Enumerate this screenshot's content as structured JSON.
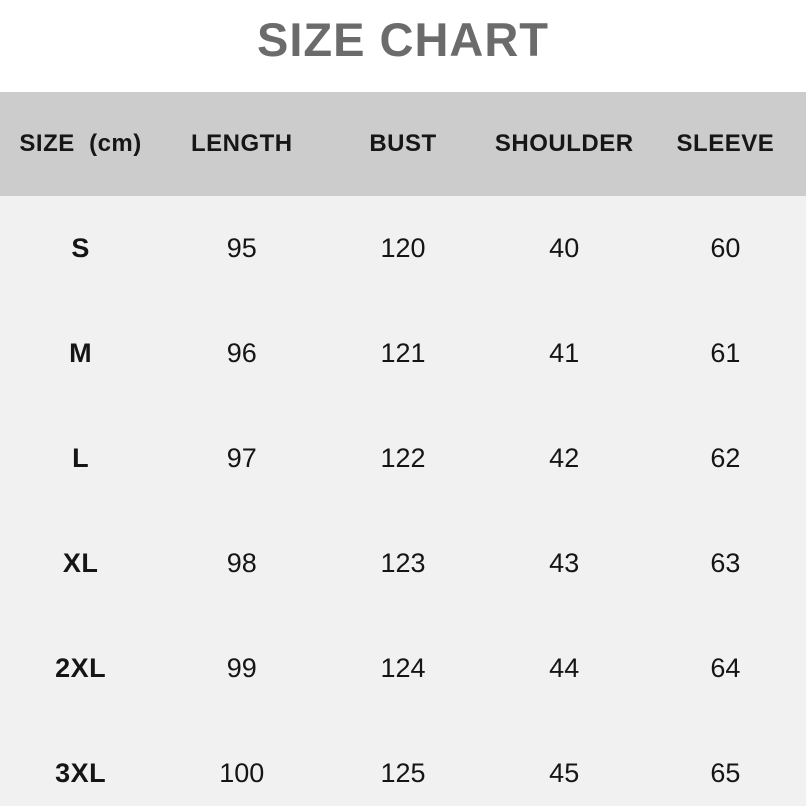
{
  "title": "SIZE CHART",
  "colors": {
    "title_text": "#6b6b6b",
    "header_bg": "#cccccc",
    "body_bg": "#f1f1f1",
    "text": "#111111",
    "page_bg": "#ffffff"
  },
  "chart_data": {
    "type": "table",
    "title": "SIZE CHART",
    "unit": "cm",
    "columns": [
      "SIZE  (cm)",
      "LENGTH",
      "BUST",
      "SHOULDER",
      "SLEEVE"
    ],
    "rows": [
      [
        "S",
        95,
        120,
        40,
        60
      ],
      [
        "M",
        96,
        121,
        41,
        61
      ],
      [
        "L",
        97,
        122,
        42,
        62
      ],
      [
        "XL",
        98,
        123,
        43,
        63
      ],
      [
        "2XL",
        99,
        124,
        44,
        64
      ],
      [
        "3XL",
        100,
        125,
        45,
        65
      ]
    ]
  }
}
